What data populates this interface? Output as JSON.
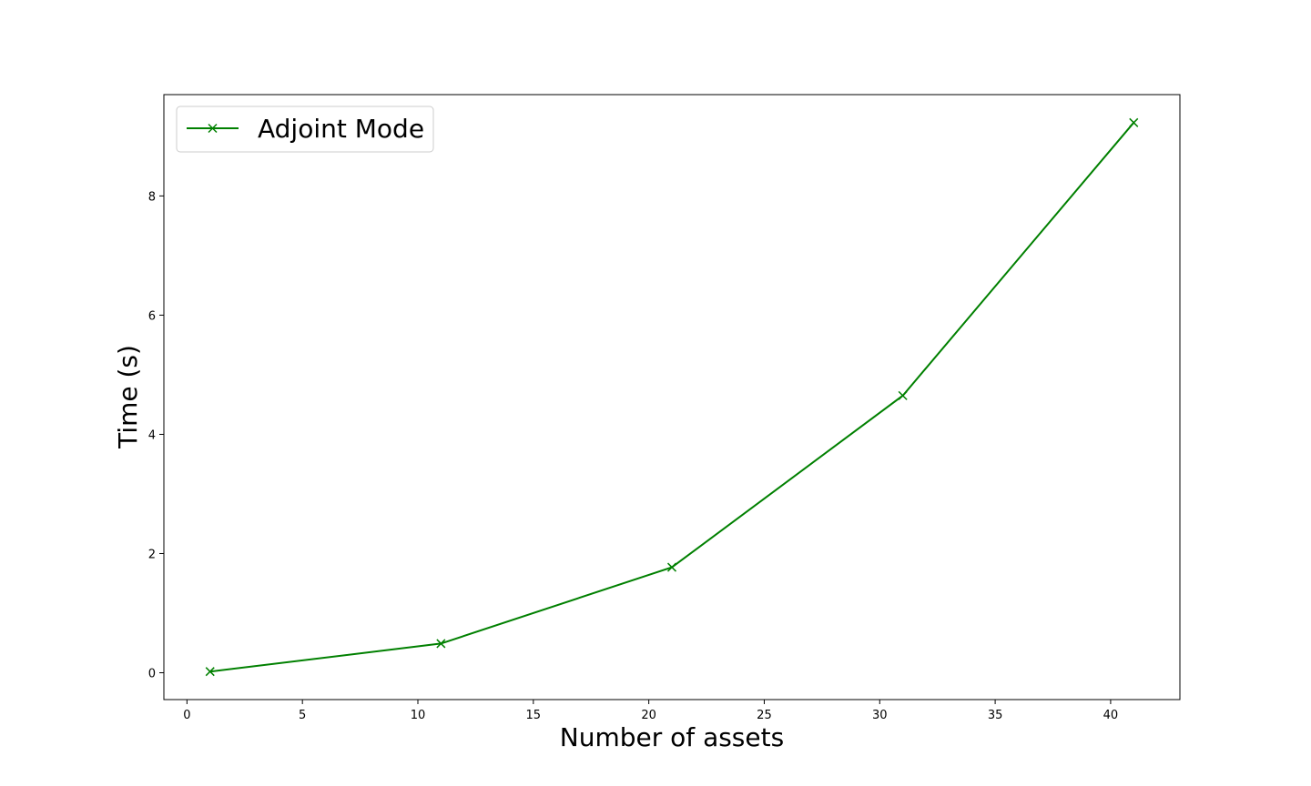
{
  "chart_data": {
    "type": "line",
    "title": "",
    "xlabel": "Number of assets",
    "ylabel": "Time (s)",
    "xlim": [
      -1,
      43
    ],
    "ylim": [
      -0.45,
      9.7
    ],
    "xticks": [
      0,
      5,
      10,
      15,
      20,
      25,
      30,
      35,
      40
    ],
    "yticks": [
      0,
      2,
      4,
      6,
      8
    ],
    "grid": false,
    "legend_position": "top-left",
    "series": [
      {
        "name": "Adjoint Mode",
        "color": "#008000",
        "marker": "x",
        "x": [
          1,
          11,
          21,
          31,
          41
        ],
        "y": [
          0.02,
          0.49,
          1.77,
          4.65,
          9.23
        ]
      }
    ]
  }
}
